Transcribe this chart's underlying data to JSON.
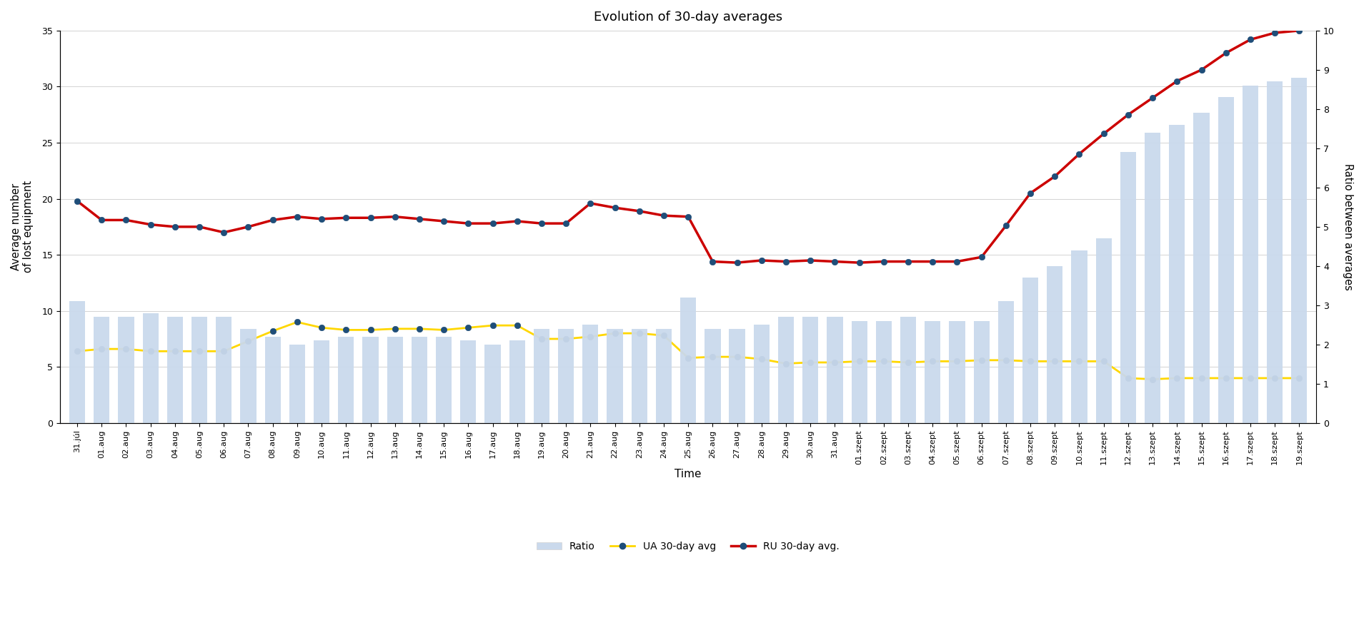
{
  "title": "Evolution of 30-day averages",
  "xlabel": "Time",
  "ylabel_left": "Average number\nof lost equipment",
  "ylabel_right": "Ratio between averages",
  "labels": [
    "31.júl",
    "01.aug",
    "02.aug",
    "03.aug",
    "04.aug",
    "05.aug",
    "06.aug",
    "07.aug",
    "08.aug",
    "09.aug",
    "10.aug",
    "11.aug",
    "12.aug",
    "13.aug",
    "14.aug",
    "15.aug",
    "16.aug",
    "17.aug",
    "18.aug",
    "19.aug",
    "20.aug",
    "21.aug",
    "22.aug",
    "23.aug",
    "24.aug",
    "25.aug",
    "26.aug",
    "27.aug",
    "28.aug",
    "29.aug",
    "30.aug",
    "31.aug",
    "01.szept",
    "02.szept",
    "03.szept",
    "04.szept",
    "05.szept",
    "06.szept",
    "07.szept",
    "08.szept",
    "09.szept",
    "10.szept",
    "11.szept",
    "12.szept",
    "13.szept",
    "14.szept",
    "15.szept",
    "16.szept",
    "17.szept",
    "18.szept",
    "19.szept"
  ],
  "ru_avg": [
    19.8,
    18.1,
    18.1,
    17.7,
    17.5,
    17.5,
    17.0,
    17.5,
    18.1,
    18.4,
    18.2,
    18.3,
    18.3,
    18.4,
    18.2,
    18.0,
    17.8,
    17.8,
    18.0,
    17.8,
    17.8,
    19.6,
    19.2,
    18.9,
    18.5,
    18.4,
    14.4,
    14.3,
    14.5,
    14.4,
    14.5,
    14.4,
    14.3,
    14.4,
    14.4,
    14.4,
    14.4,
    14.8,
    17.6,
    20.5,
    22.0,
    24.0,
    25.8,
    27.5,
    29.0,
    30.5,
    31.5,
    33.0,
    34.2,
    34.8,
    35.0
  ],
  "ua_avg": [
    6.4,
    6.6,
    6.6,
    6.4,
    6.4,
    6.4,
    6.4,
    7.3,
    8.2,
    9.0,
    8.5,
    8.3,
    8.3,
    8.4,
    8.4,
    8.3,
    8.5,
    8.7,
    8.7,
    7.5,
    7.5,
    7.7,
    8.0,
    8.0,
    7.8,
    5.8,
    5.9,
    5.9,
    5.7,
    5.3,
    5.4,
    5.4,
    5.5,
    5.5,
    5.4,
    5.5,
    5.5,
    5.6,
    5.6,
    5.5,
    5.5,
    5.5,
    5.5,
    4.0,
    3.9,
    4.0,
    4.0,
    4.0,
    4.0,
    4.0,
    4.0
  ],
  "ratio": [
    3.1,
    2.7,
    2.7,
    2.8,
    2.7,
    2.7,
    2.7,
    2.4,
    2.2,
    2.0,
    2.1,
    2.2,
    2.2,
    2.2,
    2.2,
    2.2,
    2.1,
    2.0,
    2.1,
    2.4,
    2.4,
    2.5,
    2.4,
    2.4,
    2.4,
    3.2,
    2.4,
    2.4,
    2.5,
    2.7,
    2.7,
    2.7,
    2.6,
    2.6,
    2.7,
    2.6,
    2.6,
    2.6,
    3.1,
    3.7,
    4.0,
    4.4,
    4.7,
    6.9,
    7.4,
    7.6,
    7.9,
    8.3,
    8.6,
    8.7,
    8.8
  ],
  "bar_color": "#cad9ec",
  "ua_line_color": "#FFD700",
  "ua_marker_color": "#1F4E79",
  "ru_line_color": "#CC0000",
  "ru_marker_color": "#1F4E79",
  "background_color": "#ffffff",
  "ylim_left": [
    0,
    35
  ],
  "ylim_right": [
    0,
    10
  ],
  "yticks_left": [
    0,
    5,
    10,
    15,
    20,
    25,
    30,
    35
  ],
  "yticks_right": [
    0,
    1,
    2,
    3,
    4,
    5,
    6,
    7,
    8,
    9,
    10
  ],
  "legend_labels": [
    "Ratio",
    "UA 30-day avg",
    "RU 30-day avg."
  ]
}
